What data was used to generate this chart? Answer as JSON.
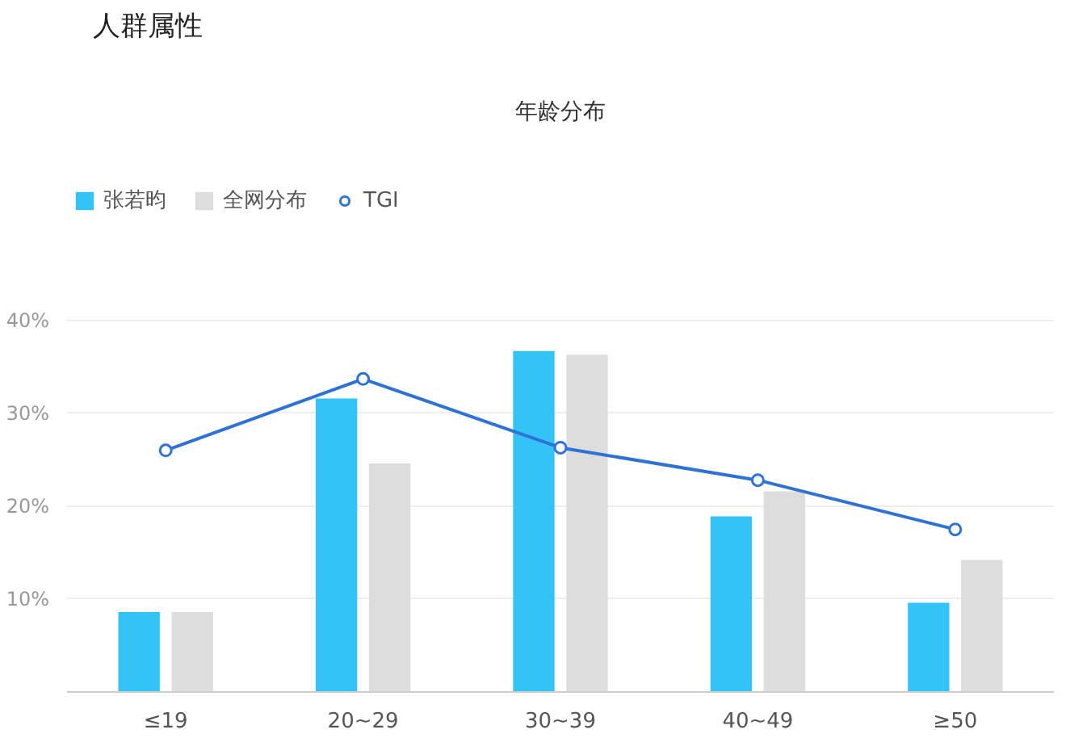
{
  "chart_data": {
    "type": "bar",
    "title": "年龄分布",
    "annotations": [
      "人群属性"
    ],
    "categories": [
      "≤19",
      "20~29",
      "30~39",
      "40~49",
      "≥50"
    ],
    "series": [
      {
        "name": "张若昀",
        "color": "#33c4f7",
        "values": [
          8.6,
          31.6,
          36.7,
          18.9,
          9.6
        ]
      },
      {
        "name": "全网分布",
        "color": "#dddddd",
        "values": [
          8.6,
          24.6,
          36.3,
          21.6,
          14.2
        ]
      },
      {
        "name": "TGI",
        "type": "line",
        "color": "#2f72d6",
        "values": [
          26.0,
          33.7,
          26.3,
          22.8,
          17.5
        ]
      }
    ],
    "ylim": [
      0,
      40
    ],
    "yticks": [
      {
        "value": 10,
        "label": "10%"
      },
      {
        "value": 20,
        "label": "20%"
      },
      {
        "value": 30,
        "label": "30%"
      },
      {
        "value": 40,
        "label": "40%"
      }
    ],
    "grid": "y",
    "legend": "top left",
    "marker": "circle"
  }
}
